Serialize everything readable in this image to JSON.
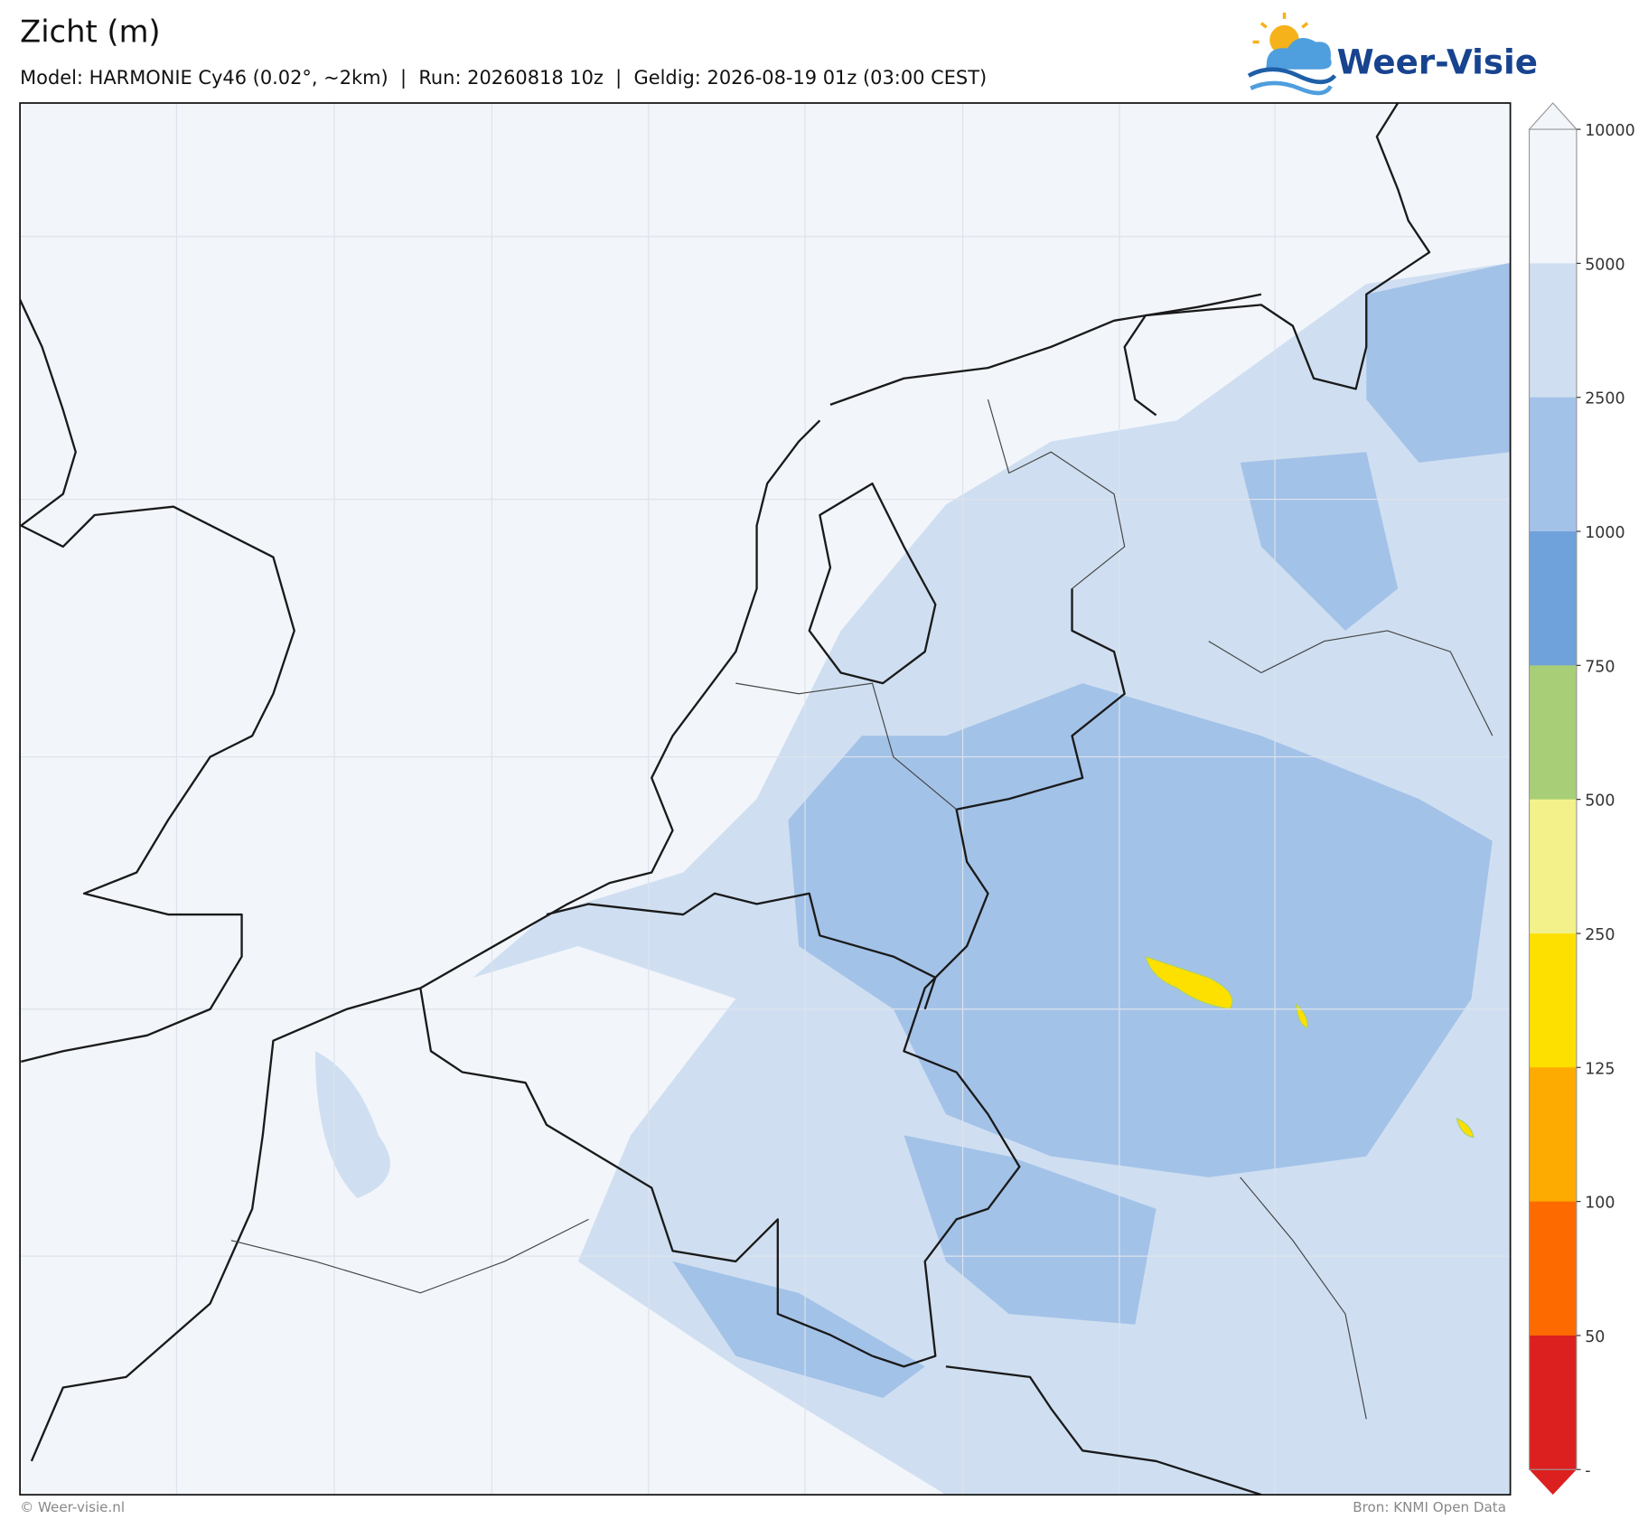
{
  "header": {
    "title": "Zicht (m)",
    "subtitle": "Model: HARMONIE Cy46 (0.02°, ~2km)  |  Run: 20260818 10z  |  Geldig: 2026-08-19 01z (03:00 CEST)"
  },
  "logo": {
    "text": "Weer-Visie"
  },
  "colorbar": {
    "ticks": [
      10000,
      5000,
      2500,
      1000,
      750,
      500,
      250,
      125,
      100,
      50,
      "-"
    ],
    "colors": [
      "#f2f5fa",
      "#cfdff1",
      "#a3c2e8",
      "#6fa1db",
      "#a8cf77",
      "#f3f28a",
      "#fde000",
      "#fdab00",
      "#fd6a00",
      "#dc2020"
    ]
  },
  "footer": {
    "left": "© Weer-visie.nl",
    "right": "Bron: KNMI Open Data"
  }
}
